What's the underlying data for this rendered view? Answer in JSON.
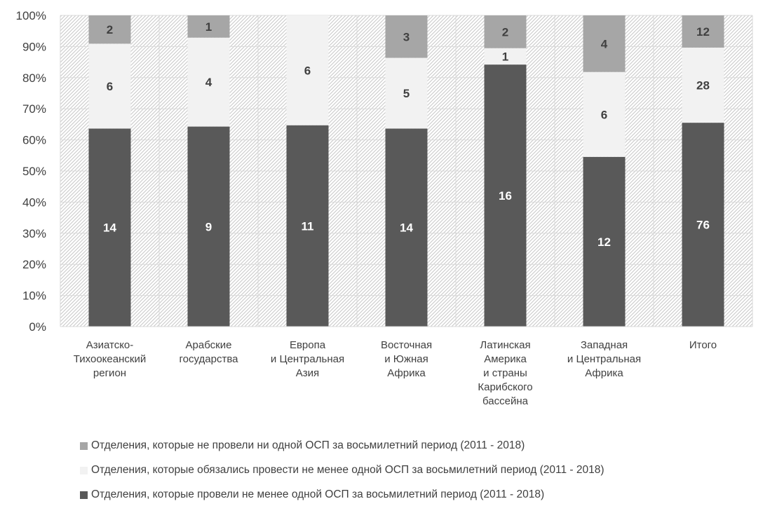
{
  "chart_data": {
    "type": "bar",
    "stacked": "percent",
    "categories": [
      "Азиатско-\nТихоокеанский\nрегион",
      "Арабские\nгосударства",
      "Европа\nи Центральная\nАзия",
      "Восточная\nи Южная\nАфрика",
      "Латинская\nАмерика\nи страны\nКарибского\nбассейна",
      "Западная\nи Центральная\nАфрика",
      "Итого"
    ],
    "series": [
      {
        "name": "Отделения, которые провели не менее одной ОСП за восьмилетний период (2011 - 2018)",
        "color": "#595959",
        "label_color": "#ffffff",
        "values": [
          14,
          9,
          11,
          14,
          16,
          12,
          76
        ]
      },
      {
        "name": "Отделения, которые обязались провести не менее одной ОСП за восьмилетний период (2011 - 2018)",
        "color": "#f2f2f2",
        "label_color": "#404040",
        "values": [
          6,
          4,
          6,
          5,
          1,
          6,
          28
        ]
      },
      {
        "name": "Отделения, которые не провели ни одной ОСП за восьмилетний период (2011 - 2018)",
        "color": "#a6a6a6",
        "label_color": "#404040",
        "values": [
          2,
          1,
          0,
          3,
          2,
          4,
          12
        ]
      }
    ],
    "y_tick_labels": [
      "0%",
      "10%",
      "20%",
      "30%",
      "40%",
      "50%",
      "60%",
      "70%",
      "80%",
      "90%",
      "100%"
    ],
    "ylim": [
      0,
      100
    ],
    "grid": true,
    "legend_position": "bottom",
    "legend_order": [
      2,
      1,
      0
    ]
  }
}
